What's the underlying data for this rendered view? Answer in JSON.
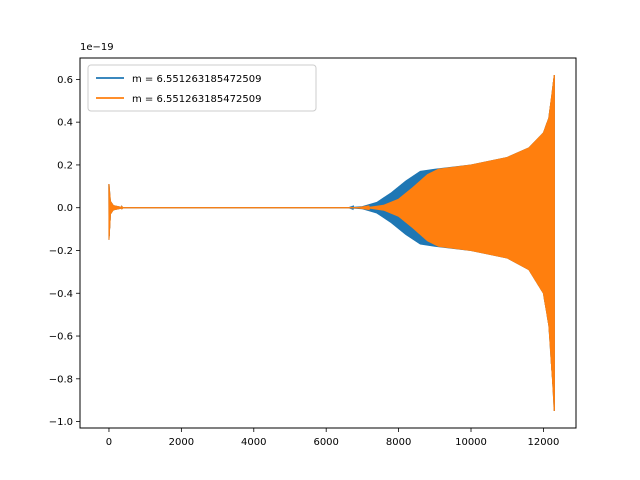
{
  "chart_data": {
    "type": "line",
    "title": "",
    "xlabel": "",
    "ylabel": "",
    "xlim": [
      -800,
      12900
    ],
    "ylim": [
      -1.03,
      0.7
    ],
    "y_offset_label": "1e−19",
    "x_ticks": [
      0,
      2000,
      4000,
      6000,
      8000,
      10000,
      12000
    ],
    "x_tick_labels": [
      "0",
      "2000",
      "4000",
      "6000",
      "8000",
      "10000",
      "12000"
    ],
    "y_ticks": [
      -1.0,
      -0.8,
      -0.6,
      -0.4,
      -0.2,
      0.0,
      0.2,
      0.4,
      0.6
    ],
    "y_tick_labels": [
      "−1.0",
      "−0.8",
      "−0.6",
      "−0.4",
      "−0.2",
      "0.0",
      "0.2",
      "0.4",
      "0.6"
    ],
    "grid": false,
    "legend_position": "top-left",
    "series": [
      {
        "name": "m = 6.551263185472509",
        "color": "#1f77b4",
        "envelope_upper": [
          [
            0,
            0.11
          ],
          [
            40,
            0.03
          ],
          [
            120,
            0.01
          ],
          [
            400,
            0.0
          ],
          [
            6600,
            0.0
          ],
          [
            7000,
            0.005
          ],
          [
            7400,
            0.025
          ],
          [
            7800,
            0.07
          ],
          [
            8200,
            0.125
          ],
          [
            8600,
            0.17
          ],
          [
            9000,
            0.18
          ],
          [
            10000,
            0.2
          ],
          [
            11000,
            0.235
          ],
          [
            11600,
            0.28
          ],
          [
            12000,
            0.35
          ],
          [
            12150,
            0.42
          ],
          [
            12250,
            0.55
          ],
          [
            12300,
            0.62
          ]
        ],
        "envelope_lower": [
          [
            0,
            -0.15
          ],
          [
            40,
            -0.03
          ],
          [
            120,
            -0.01
          ],
          [
            400,
            0.0
          ],
          [
            6600,
            0.0
          ],
          [
            7000,
            -0.005
          ],
          [
            7400,
            -0.025
          ],
          [
            7800,
            -0.07
          ],
          [
            8200,
            -0.125
          ],
          [
            8600,
            -0.17
          ],
          [
            9000,
            -0.18
          ],
          [
            10000,
            -0.2
          ],
          [
            11000,
            -0.235
          ],
          [
            11600,
            -0.29
          ],
          [
            12000,
            -0.4
          ],
          [
            12150,
            -0.55
          ],
          [
            12250,
            -0.8
          ],
          [
            12300,
            -0.95
          ]
        ]
      },
      {
        "name": "m = 6.551263185472509",
        "color": "#ff7f0e",
        "envelope_upper": [
          [
            0,
            0.11
          ],
          [
            40,
            0.03
          ],
          [
            120,
            0.01
          ],
          [
            400,
            0.0
          ],
          [
            6800,
            0.0
          ],
          [
            7200,
            0.002
          ],
          [
            7600,
            0.012
          ],
          [
            8000,
            0.04
          ],
          [
            8400,
            0.095
          ],
          [
            8800,
            0.155
          ],
          [
            9100,
            0.18
          ],
          [
            10000,
            0.2
          ],
          [
            11000,
            0.235
          ],
          [
            11600,
            0.28
          ],
          [
            12000,
            0.35
          ],
          [
            12150,
            0.42
          ],
          [
            12250,
            0.55
          ],
          [
            12300,
            0.62
          ]
        ],
        "envelope_lower": [
          [
            0,
            -0.15
          ],
          [
            40,
            -0.03
          ],
          [
            120,
            -0.01
          ],
          [
            400,
            0.0
          ],
          [
            6800,
            0.0
          ],
          [
            7200,
            -0.002
          ],
          [
            7600,
            -0.012
          ],
          [
            8000,
            -0.04
          ],
          [
            8400,
            -0.095
          ],
          [
            8800,
            -0.155
          ],
          [
            9100,
            -0.18
          ],
          [
            10000,
            -0.2
          ],
          [
            11000,
            -0.235
          ],
          [
            11600,
            -0.29
          ],
          [
            12000,
            -0.4
          ],
          [
            12150,
            -0.55
          ],
          [
            12250,
            -0.8
          ],
          [
            12300,
            -0.95
          ]
        ]
      }
    ]
  }
}
